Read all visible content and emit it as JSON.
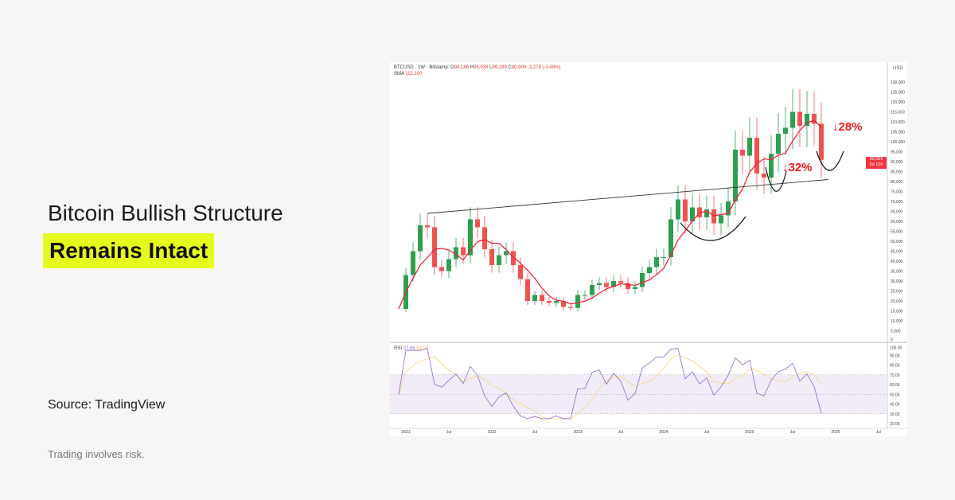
{
  "headline": {
    "line1": "Bitcoin Bullish Structure",
    "line2": "Remains Intact",
    "highlight_color": "#e6fb1d"
  },
  "source": "Source: TradingView",
  "disclaimer": "Trading involves risk.",
  "chart_header": {
    "symbol": "BTCUSD · 1W · Bitstamp",
    "o_label": "O",
    "o": "94,186",
    "h_label": "H",
    "h": "95,938",
    "l_label": "L",
    "l": "89,189",
    "c_label": "C",
    "c": "90,909",
    "change": "-3,278 (-3.48%)",
    "sma_label": "SMA",
    "sma": "112,100",
    "rsi_label": "RSI",
    "rsi": "37.86",
    "rsi_ma": "53.97"
  },
  "annotations": {
    "drop1": "↓28%",
    "drop2": "↓32%"
  },
  "price_tag": {
    "value": "90,909",
    "countdown": "5d 15h"
  },
  "colors": {
    "up": "#26a69a",
    "down": "#ef5350",
    "sma": "#f0233a",
    "rsi": "#9575cd",
    "rsi_ma": "#f9d56e",
    "annotation": "#ee1c1c"
  },
  "chart_data": {
    "type": "candlestick",
    "currency": "USD",
    "price_ticks": [
      0,
      5000,
      10000,
      15000,
      20000,
      25000,
      30000,
      35000,
      40000,
      45000,
      50000,
      55000,
      60000,
      65000,
      70000,
      75000,
      80000,
      85000,
      90000,
      95000,
      100000,
      105000,
      110000,
      115000,
      120000,
      125000,
      130000
    ],
    "price_tick_labels": [
      "0",
      "5,000",
      "10,000",
      "15,000",
      "20,000",
      "25,000",
      "30,000",
      "35,000",
      "40,000",
      "45,000",
      "50,000",
      "55,000",
      "60,000",
      "65,000",
      "70,000",
      "75,000",
      "80,000",
      "85,000",
      "90,000",
      "95,000",
      "100,000",
      "105,000",
      "110,000",
      "115,000",
      "120,000",
      "125,000",
      "130,000"
    ],
    "rsi_ticks": [
      "20.00",
      "30.00",
      "40.00",
      "50.00",
      "60.00",
      "70.00",
      "80.00",
      "90.00",
      "100.00"
    ],
    "x_labels": [
      "2021",
      "Jul",
      "2022",
      "Jul",
      "2023",
      "Jul",
      "2024",
      "Jul",
      "2025",
      "Jul",
      "2026",
      "Jul"
    ],
    "months": [
      "2020-12",
      "2021-01",
      "2021-02",
      "2021-03",
      "2021-04",
      "2021-05",
      "2021-06",
      "2021-07",
      "2021-08",
      "2021-09",
      "2021-10",
      "2021-11",
      "2021-12",
      "2022-01",
      "2022-02",
      "2022-03",
      "2022-04",
      "2022-05",
      "2022-06",
      "2022-07",
      "2022-08",
      "2022-09",
      "2022-10",
      "2022-11",
      "2022-12",
      "2023-01",
      "2023-02",
      "2023-03",
      "2023-04",
      "2023-05",
      "2023-06",
      "2023-07",
      "2023-08",
      "2023-09",
      "2023-10",
      "2023-11",
      "2023-12",
      "2024-01",
      "2024-02",
      "2024-03",
      "2024-04",
      "2024-05",
      "2024-06",
      "2024-07",
      "2024-08",
      "2024-09",
      "2024-10",
      "2024-11",
      "2024-12",
      "2025-01",
      "2025-02",
      "2025-03",
      "2025-04",
      "2025-05",
      "2025-06",
      "2025-07",
      "2025-08",
      "2025-09",
      "2025-10",
      "2025-11"
    ],
    "close": [
      16000,
      33000,
      45000,
      58000,
      57000,
      37000,
      35000,
      41000,
      47000,
      43000,
      61000,
      57000,
      46000,
      38000,
      43000,
      45000,
      38000,
      31000,
      20000,
      23000,
      20000,
      19000,
      20000,
      17000,
      16500,
      23000,
      23000,
      28000,
      29000,
      27000,
      30000,
      29000,
      26000,
      27000,
      34000,
      37000,
      42000,
      42000,
      61000,
      71000,
      60000,
      67000,
      62000,
      66000,
      59000,
      63000,
      70000,
      96000,
      93000,
      102000,
      84000,
      82000,
      94000,
      104000,
      107000,
      115000,
      108000,
      114000,
      109000,
      90909
    ],
    "trendline": [
      {
        "date": "2021-04",
        "value": 64000
      },
      {
        "date": "2025-12",
        "value": 81000
      }
    ]
  }
}
